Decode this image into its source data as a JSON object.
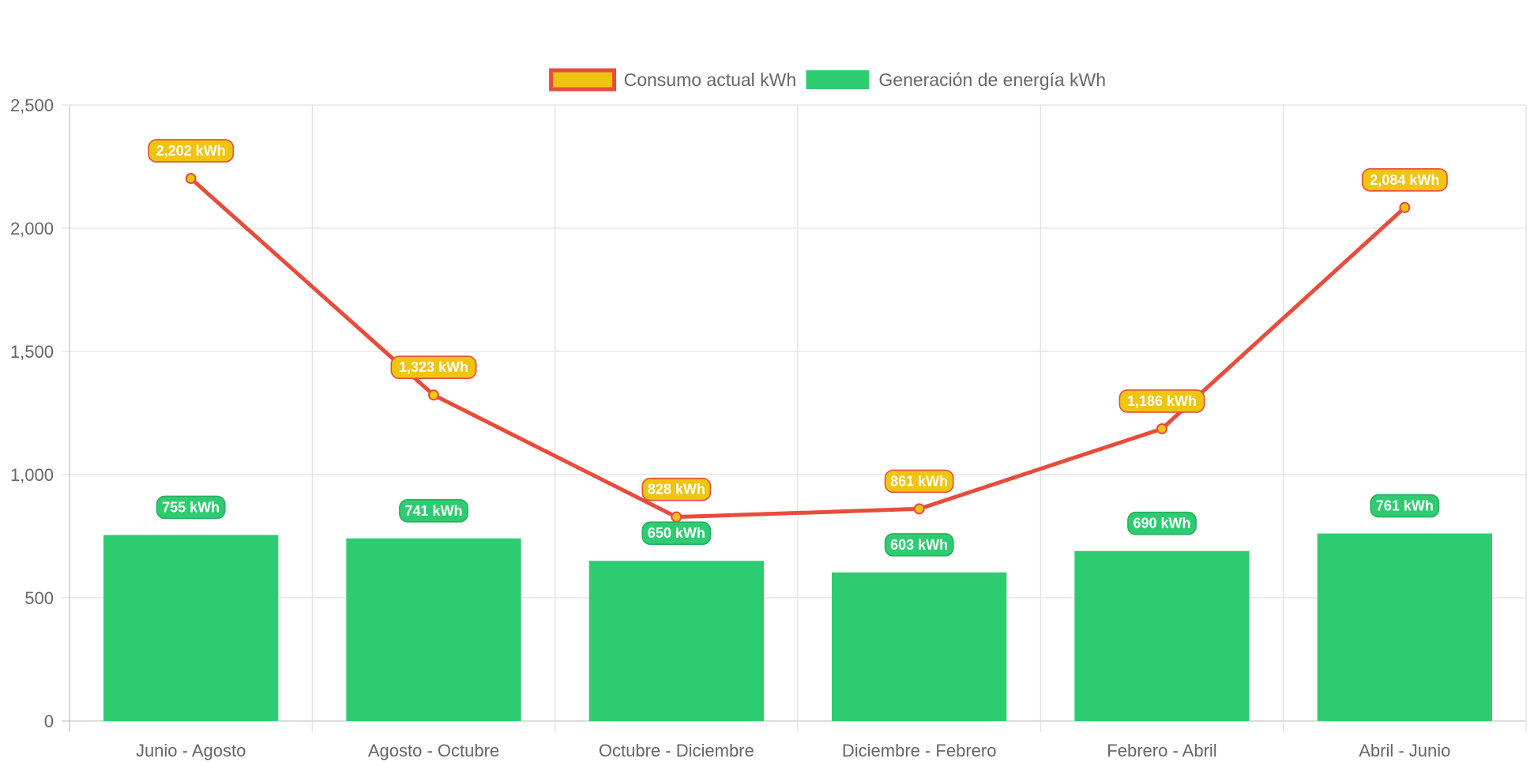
{
  "chart_data": {
    "type": "bar",
    "categories": [
      "Junio - Agosto",
      "Agosto - Octubre",
      "Octubre - Diciembre",
      "Diciembre - Febrero",
      "Febrero - Abril",
      "Abril - Junio"
    ],
    "series": [
      {
        "name": "Consumo actual kWh",
        "type": "line",
        "values": [
          2202,
          1323,
          828,
          861,
          1186,
          2084
        ],
        "labels": [
          "2,202 kWh",
          "1,323 kWh",
          "828 kWh",
          "861 kWh",
          "1,186 kWh",
          "2,084 kWh"
        ],
        "color": "#e74c3c",
        "fill_color": "#f1c40f"
      },
      {
        "name": "Generación de energía kWh",
        "type": "bar",
        "values": [
          755,
          741,
          650,
          603,
          690,
          761
        ],
        "labels": [
          "755 kWh",
          "741 kWh",
          "650 kWh",
          "603 kWh",
          "690 kWh",
          "761 kWh"
        ],
        "color": "#2ecc71"
      }
    ],
    "yticks": [
      "0",
      "500",
      "1,000",
      "1,500",
      "2,000",
      "2,500"
    ],
    "ylim": [
      0,
      2500
    ],
    "title": "",
    "xlabel": "",
    "ylabel": "",
    "grid": true,
    "legend_position": "top-center"
  }
}
